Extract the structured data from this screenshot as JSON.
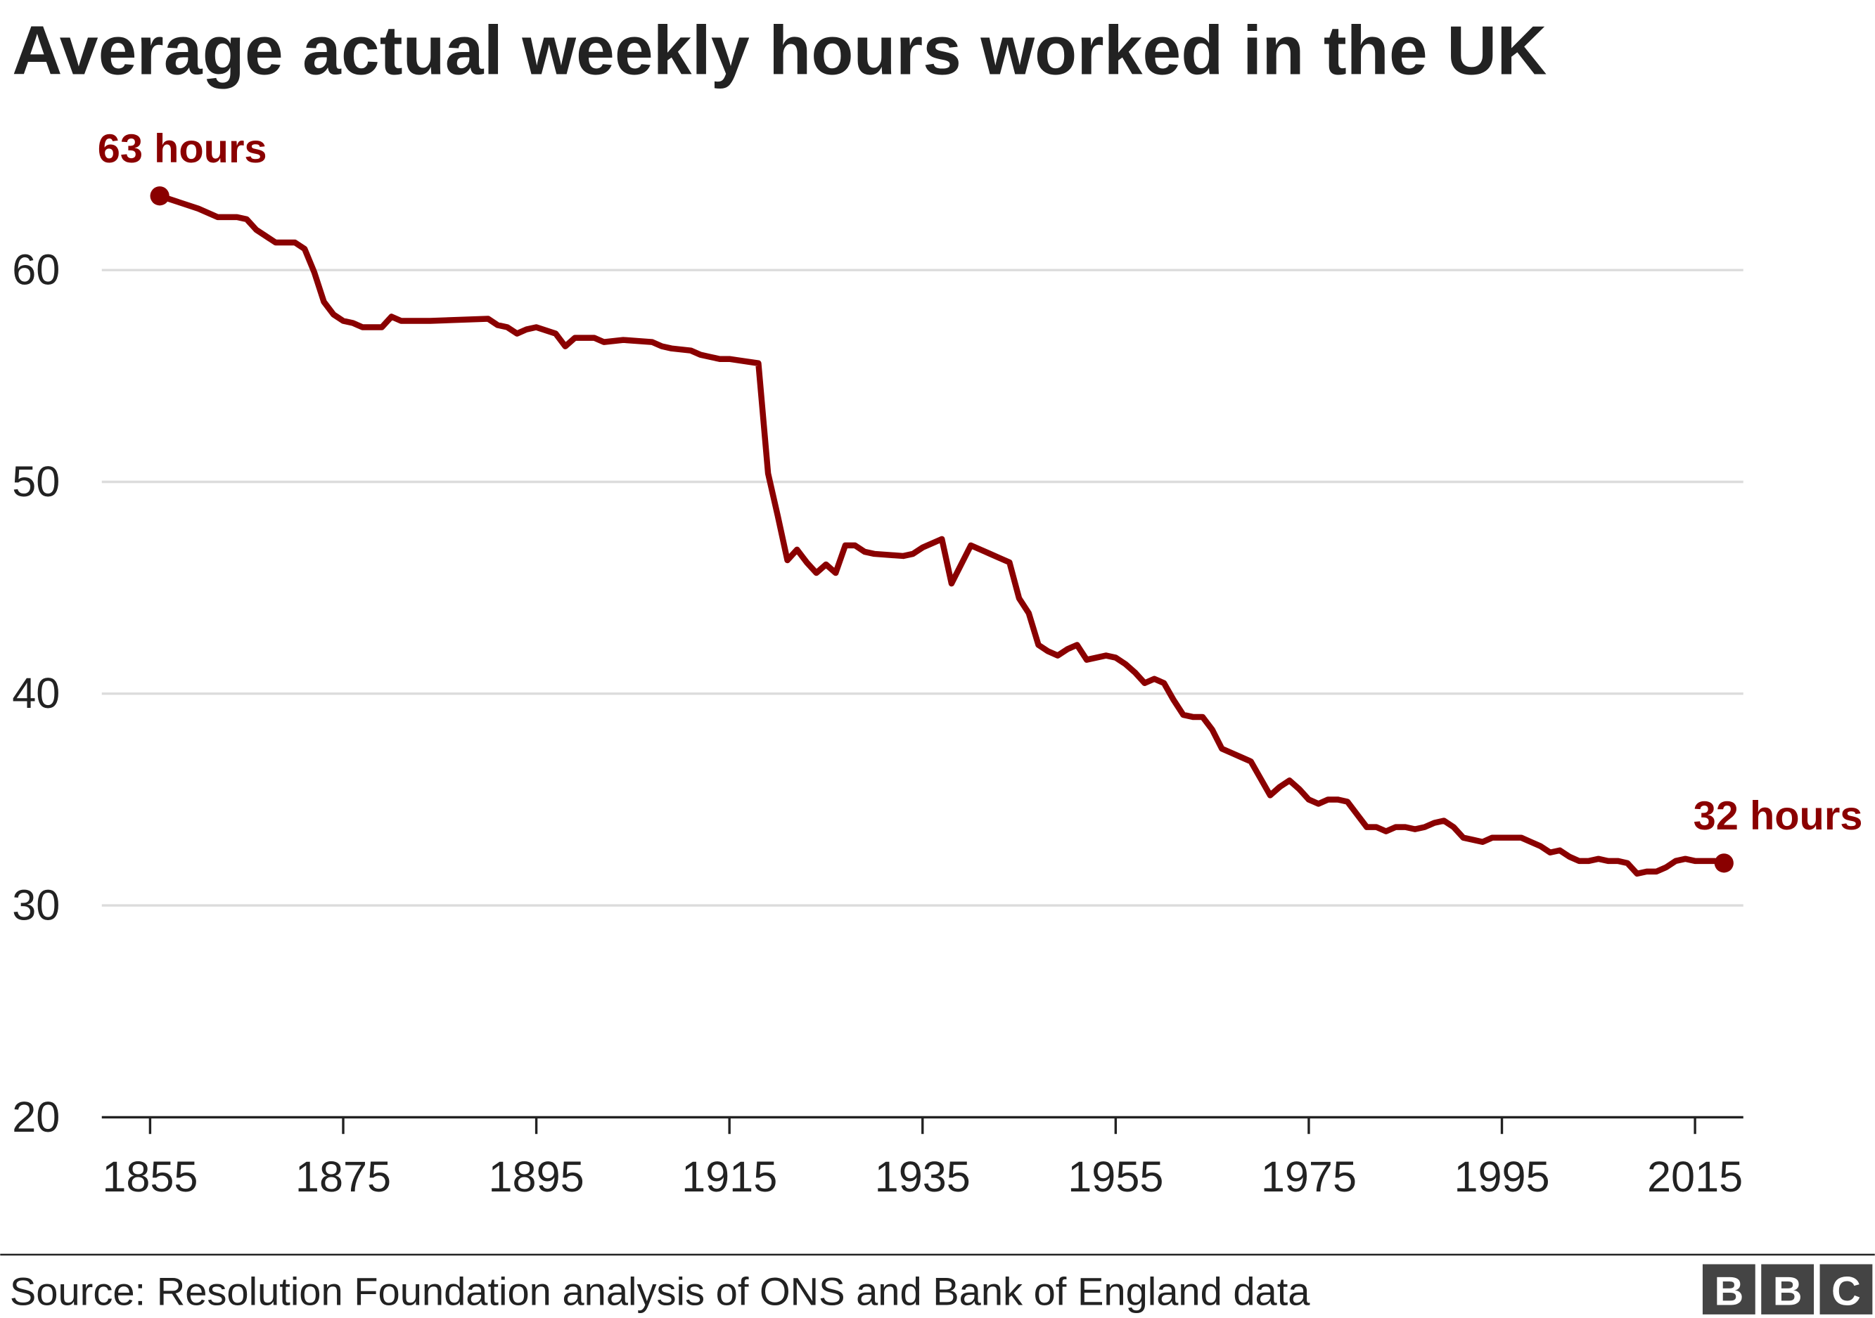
{
  "chart_data": {
    "type": "line",
    "title": "Average actual weekly hours worked in the UK",
    "source": "Source: Resolution Foundation analysis of ONS and Bank of England data",
    "logo": [
      "B",
      "B",
      "C"
    ],
    "annotations": [
      "63 hours",
      "32 hours"
    ],
    "x": [
      1856,
      1858,
      1860,
      1862,
      1864,
      1865,
      1866,
      1868,
      1870,
      1871,
      1872,
      1873,
      1874,
      1875,
      1876,
      1877,
      1879,
      1880,
      1881,
      1884,
      1890,
      1891,
      1892,
      1893,
      1894,
      1895,
      1897,
      1898,
      1899,
      1901,
      1902,
      1904,
      1907,
      1908,
      1909,
      1911,
      1912,
      1913,
      1914,
      1915,
      1918,
      1919,
      1920,
      1921,
      1922,
      1923,
      1924,
      1925,
      1926,
      1927,
      1928,
      1929,
      1930,
      1933,
      1934,
      1935,
      1936,
      1937,
      1938,
      1939,
      1940,
      1941,
      1942,
      1943,
      1944,
      1945,
      1946,
      1947,
      1948,
      1949,
      1950,
      1951,
      1952,
      1953,
      1954,
      1955,
      1956,
      1957,
      1958,
      1959,
      1960,
      1961,
      1962,
      1963,
      1964,
      1965,
      1966,
      1967,
      1968,
      1969,
      1970,
      1971,
      1972,
      1973,
      1974,
      1975,
      1976,
      1977,
      1978,
      1979,
      1980,
      1981,
      1982,
      1983,
      1984,
      1985,
      1986,
      1987,
      1988,
      1989,
      1990,
      1991,
      1992,
      1993,
      1994,
      1995,
      1997,
      1998,
      1999,
      2000,
      2001,
      2002,
      2003,
      2004,
      2005,
      2006,
      2007,
      2008,
      2009,
      2010,
      2011,
      2012,
      2013,
      2014,
      2015,
      2017,
      2018
    ],
    "series": [
      {
        "name": "Average actual weekly hours",
        "color": "#8a0000",
        "values": [
          63.5,
          63.2,
          62.9,
          62.5,
          62.5,
          62.4,
          61.9,
          61.3,
          61.3,
          61.0,
          59.9,
          58.5,
          57.9,
          57.6,
          57.5,
          57.3,
          57.3,
          57.8,
          57.6,
          57.6,
          57.7,
          57.4,
          57.3,
          57.0,
          57.2,
          57.3,
          57.0,
          56.4,
          56.8,
          56.8,
          56.6,
          56.7,
          56.6,
          56.4,
          56.3,
          56.2,
          56.0,
          55.9,
          55.8,
          55.8,
          55.6,
          50.4,
          48.4,
          46.3,
          46.8,
          46.2,
          45.7,
          46.1,
          45.7,
          47.0,
          47.0,
          46.7,
          46.6,
          46.5,
          46.6,
          46.9,
          47.1,
          47.3,
          45.2,
          46.1,
          47.0,
          46.8,
          46.6,
          46.4,
          46.2,
          44.5,
          43.8,
          42.3,
          42.0,
          41.8,
          42.1,
          42.3,
          41.6,
          41.7,
          41.8,
          41.7,
          41.4,
          41.0,
          40.5,
          40.7,
          40.5,
          39.7,
          39.0,
          38.9,
          38.9,
          38.3,
          37.4,
          37.2,
          37.0,
          36.8,
          36.0,
          35.2,
          35.6,
          35.9,
          35.5,
          35.0,
          34.8,
          35.0,
          35.0,
          34.9,
          34.3,
          33.7,
          33.7,
          33.5,
          33.7,
          33.7,
          33.6,
          33.7,
          33.9,
          34.0,
          33.7,
          33.2,
          33.1,
          33.0,
          33.2,
          33.2,
          33.2,
          33.0,
          32.8,
          32.5,
          32.6,
          32.3,
          32.1,
          32.1,
          32.2,
          32.1,
          32.1,
          32.0,
          31.5,
          31.6,
          31.6,
          31.8,
          32.1,
          32.2,
          32.1,
          32.1,
          32.0
        ]
      }
    ],
    "xlim": [
      1850,
      2020
    ],
    "ylim": [
      20,
      65
    ],
    "xticks": [
      1855,
      1875,
      1895,
      1915,
      1935,
      1955,
      1975,
      1995,
      2015
    ],
    "yticks": [
      20,
      30,
      40,
      50,
      60
    ],
    "grid": true
  }
}
